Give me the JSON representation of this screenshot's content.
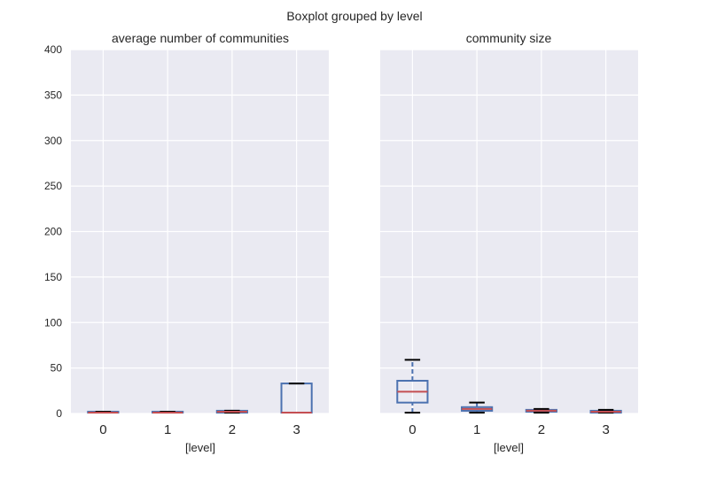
{
  "suptitle": "Boxplot grouped by level",
  "colors": {
    "panel_bg": "#EAEAF2",
    "grid": "#FFFFFF",
    "box": "#4C72B0",
    "median": "#C44E52",
    "cap": "#000000",
    "text": "#262626"
  },
  "chart_data": [
    {
      "type": "box",
      "title": "average number of communities",
      "xlabel": "[level]",
      "ylabel": "",
      "categories": [
        "0",
        "1",
        "2",
        "3"
      ],
      "yticks": [
        0,
        50,
        100,
        150,
        200,
        250,
        300,
        350,
        400
      ],
      "ylim": [
        0,
        400
      ],
      "grid": true,
      "boxes": [
        {
          "category": "0",
          "whisker_low": 1,
          "q1": 1,
          "median": 1,
          "q3": 2,
          "whisker_high": 2
        },
        {
          "category": "1",
          "whisker_low": 1,
          "q1": 1,
          "median": 1,
          "q3": 2,
          "whisker_high": 2
        },
        {
          "category": "2",
          "whisker_low": 1,
          "q1": 1,
          "median": 2,
          "q3": 3,
          "whisker_high": 3
        },
        {
          "category": "3",
          "whisker_low": 1,
          "q1": 1,
          "median": 1,
          "q3": 33,
          "whisker_high": 33
        }
      ]
    },
    {
      "type": "box",
      "title": "community size",
      "xlabel": "[level]",
      "ylabel": "",
      "categories": [
        "0",
        "1",
        "2",
        "3"
      ],
      "yticks": [
        0,
        50,
        100,
        150,
        200,
        250,
        300,
        350,
        400
      ],
      "ylim": [
        0,
        400
      ],
      "grid": true,
      "boxes": [
        {
          "category": "0",
          "whisker_low": 1,
          "q1": 12,
          "median": 24,
          "q3": 36,
          "whisker_high": 59
        },
        {
          "category": "1",
          "whisker_low": 1,
          "q1": 3,
          "median": 5,
          "q3": 7,
          "whisker_high": 12
        },
        {
          "category": "2",
          "whisker_low": 1,
          "q1": 2,
          "median": 3,
          "q3": 4,
          "whisker_high": 5
        },
        {
          "category": "3",
          "whisker_low": 1,
          "q1": 1,
          "median": 2,
          "q3": 3,
          "whisker_high": 4
        }
      ]
    }
  ]
}
